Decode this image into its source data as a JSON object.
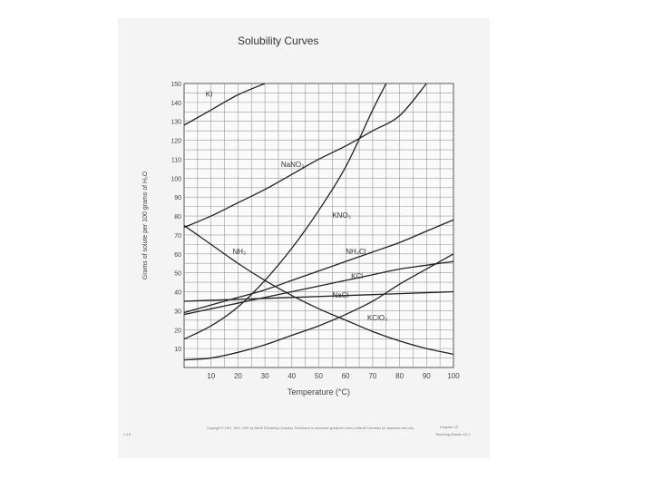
{
  "chart_data": {
    "type": "line",
    "title": "Solubility Curves",
    "xlabel": "Temperature (°C)",
    "ylabel": "Grams of solute per 100 grams of H₂O",
    "xlim": [
      0,
      100
    ],
    "ylim": [
      0,
      150
    ],
    "xticks": [
      "10",
      "20",
      "30",
      "40",
      "50",
      "60",
      "70",
      "80",
      "90",
      "100"
    ],
    "yticks": [
      "10",
      "20",
      "30",
      "40",
      "50",
      "60",
      "70",
      "80",
      "90",
      "100",
      "110",
      "120",
      "130",
      "140",
      "150"
    ],
    "grid": true,
    "series": [
      {
        "name": "KI",
        "x": [
          0,
          10,
          20,
          30
        ],
        "y": [
          128,
          136,
          144,
          150
        ]
      },
      {
        "name": "NaNO₃",
        "x": [
          0,
          10,
          20,
          30,
          40,
          50,
          60,
          70,
          80,
          90
        ],
        "y": [
          74,
          80,
          87,
          94,
          102,
          110,
          117,
          125,
          133,
          150
        ]
      },
      {
        "name": "KNO₃",
        "x": [
          0,
          10,
          20,
          30,
          40,
          50,
          60,
          70,
          75
        ],
        "y": [
          15,
          22,
          32,
          46,
          63,
          83,
          106,
          136,
          150
        ]
      },
      {
        "name": "NH₃",
        "x": [
          0,
          10,
          20,
          30,
          40,
          50,
          60,
          70,
          80,
          90,
          100
        ],
        "y": [
          75,
          65,
          55,
          46,
          38,
          31,
          25,
          19,
          14,
          10,
          7
        ]
      },
      {
        "name": "NH₄Cl",
        "x": [
          0,
          10,
          20,
          30,
          40,
          50,
          60,
          70,
          80,
          90,
          100
        ],
        "y": [
          29,
          33,
          37,
          41,
          46,
          51,
          56,
          61,
          66,
          72,
          78
        ]
      },
      {
        "name": "KCl",
        "x": [
          0,
          10,
          20,
          30,
          40,
          50,
          60,
          70,
          80,
          90,
          100
        ],
        "y": [
          28,
          31,
          34,
          37,
          40,
          43,
          46,
          49,
          52,
          54,
          56
        ]
      },
      {
        "name": "NaCl",
        "x": [
          0,
          10,
          20,
          30,
          40,
          50,
          60,
          70,
          80,
          90,
          100
        ],
        "y": [
          35,
          35.5,
          36,
          36.5,
          37,
          37.5,
          38,
          38.5,
          39,
          39.5,
          40
        ]
      },
      {
        "name": "KClO₃",
        "x": [
          0,
          10,
          20,
          30,
          40,
          50,
          60,
          70,
          80,
          90,
          100
        ],
        "y": [
          4,
          5,
          8,
          12,
          17,
          22,
          28,
          35,
          44,
          52,
          60
        ]
      }
    ],
    "annotations": [
      {
        "text": "KI",
        "x": 8,
        "y": 143
      },
      {
        "text": "NaNO₃",
        "x": 36,
        "y": 106
      },
      {
        "text": "KNO₃",
        "x": 55,
        "y": 79
      },
      {
        "text": "NH₃",
        "x": 18,
        "y": 60
      },
      {
        "text": "NH₄Cl",
        "x": 60,
        "y": 60
      },
      {
        "text": "KCl",
        "x": 62,
        "y": 47
      },
      {
        "text": "NaCl",
        "x": 55,
        "y": 37
      },
      {
        "text": "KClO₃",
        "x": 68,
        "y": 25
      }
    ]
  },
  "footer": {
    "copyright": "Copyright © 1997, 1991, 1987 by Merrill Publishing Company. Permission to reproduce granted to users of Merrill Chemistry for classroom use only.",
    "right_line1": "Chapter 15",
    "right_line2": "Teaching Master 15-1",
    "left_text": "1-15"
  }
}
